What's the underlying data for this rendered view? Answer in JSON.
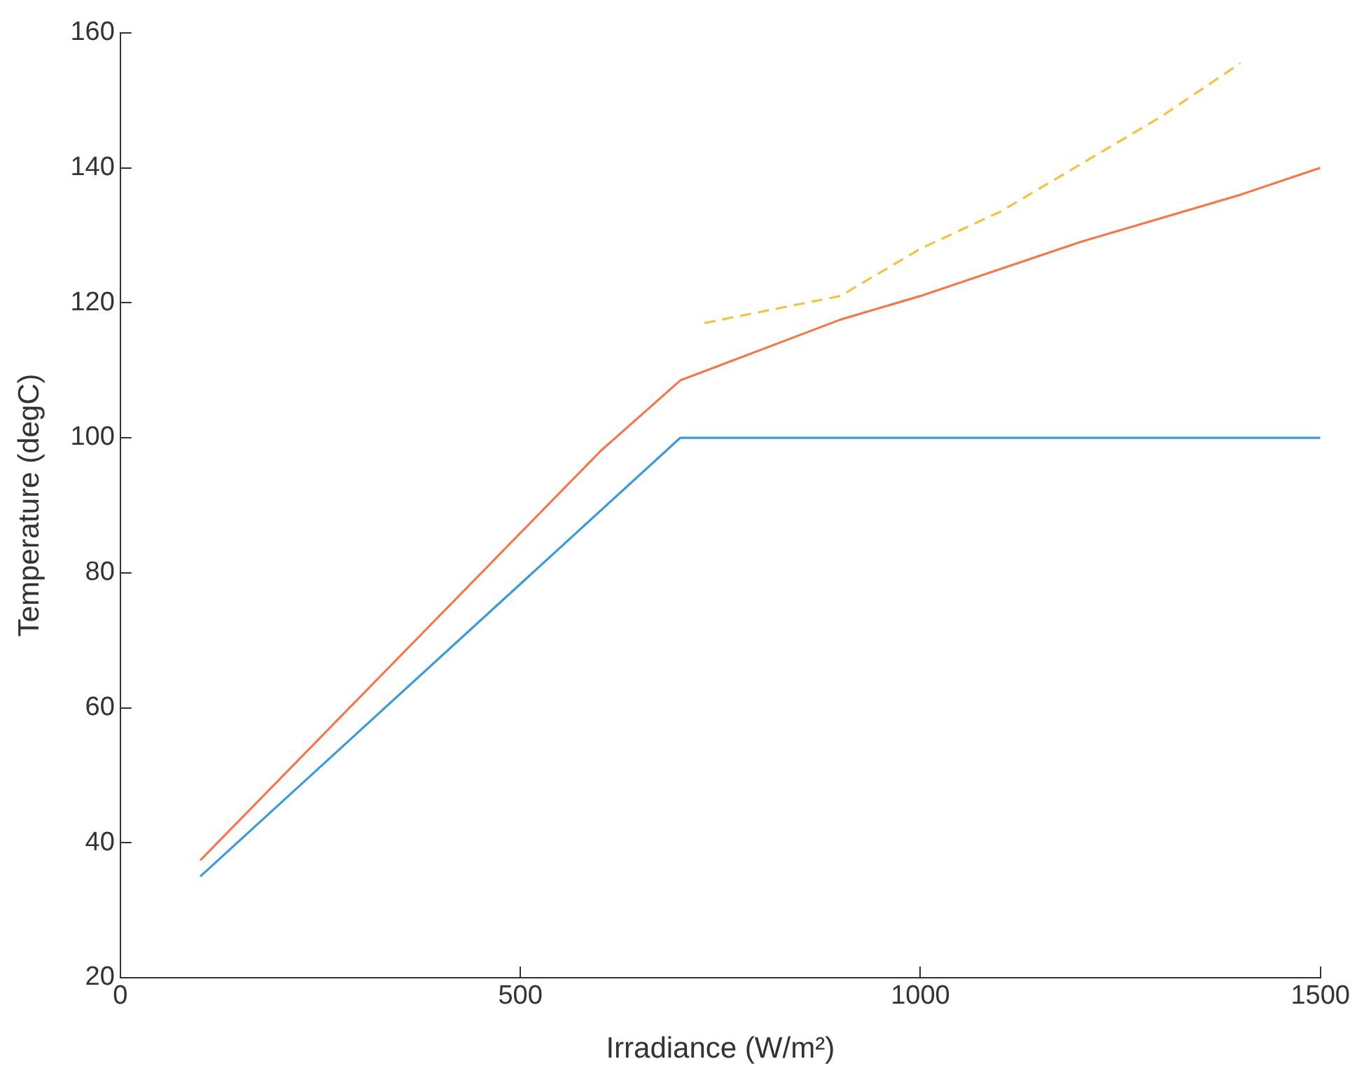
{
  "chart_data": {
    "type": "line",
    "xlabel": "Irradiance (W/m²)",
    "ylabel": "Temperature (degC)",
    "xlim": [
      0,
      1500
    ],
    "xticks": [
      0,
      500,
      1000,
      1500
    ],
    "ylim": [
      20,
      160
    ],
    "yticks": [
      20,
      40,
      60,
      80,
      100,
      120,
      140,
      160
    ],
    "grid": false,
    "legend": false,
    "marker": "none",
    "series": [
      {
        "color": "#3d9ad9",
        "x": [
          100,
          700,
          1500
        ],
        "values": [
          35,
          100,
          100
        ],
        "line_style": "solid"
      },
      {
        "color": "#ee7a4e",
        "x": [
          100,
          600,
          700,
          900,
          1000,
          1200,
          1400,
          1500
        ],
        "values": [
          37.4,
          98,
          108.5,
          117.5,
          121,
          129,
          136,
          140
        ],
        "line_style": "solid"
      },
      {
        "color": "#f2c242",
        "x": [
          730,
          900,
          1000,
          1100,
          1200,
          1300,
          1400
        ],
        "values": [
          117,
          121,
          128,
          133.5,
          140.5,
          147.5,
          155.5
        ],
        "line_style": "dashed"
      }
    ]
  }
}
